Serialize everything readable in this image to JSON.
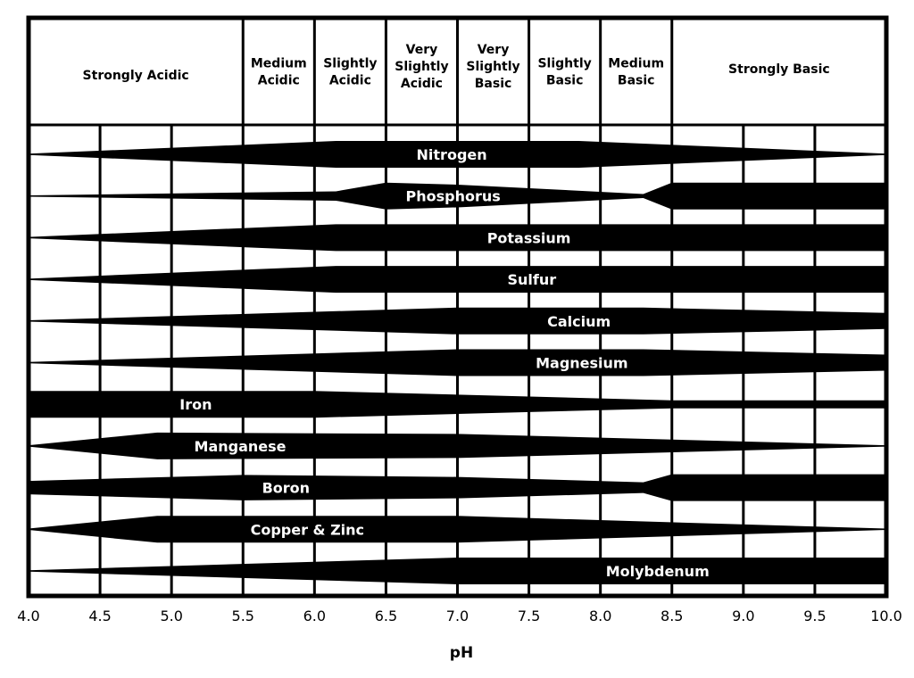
{
  "chart_data": {
    "type": "area",
    "xlabel": "pH",
    "xlim": [
      4.0,
      10.0
    ],
    "x_ticks": [
      "4.0",
      "4.5",
      "5.0",
      "5.5",
      "6.0",
      "6.5",
      "7.0",
      "7.5",
      "8.0",
      "8.5",
      "9.0",
      "9.5",
      "10.0"
    ],
    "grid": true,
    "header_categories": [
      {
        "label": "Strongly Acidic",
        "range": [
          4.0,
          5.5
        ]
      },
      {
        "label": "Medium Acidic",
        "range": [
          5.5,
          6.0
        ]
      },
      {
        "label": "Slightly Acidic",
        "range": [
          6.0,
          6.5
        ]
      },
      {
        "label": "Very Slightly Acidic",
        "range": [
          6.5,
          7.0
        ]
      },
      {
        "label": "Very Slightly Basic",
        "range": [
          7.0,
          7.5
        ]
      },
      {
        "label": "Slightly Basic",
        "range": [
          7.5,
          8.0
        ]
      },
      {
        "label": "Medium Basic",
        "range": [
          8.0,
          8.5
        ]
      },
      {
        "label": "Strongly Basic",
        "range": [
          8.5,
          10.0
        ]
      }
    ],
    "series_note_unit": "relative availability (0-1)",
    "series": [
      {
        "name": "Nitrogen",
        "points": [
          [
            4.0,
            0.05
          ],
          [
            6.15,
            1
          ],
          [
            7.85,
            1
          ],
          [
            10.0,
            0.05
          ]
        ]
      },
      {
        "name": "Phosphorus",
        "points": [
          [
            4.0,
            0.05
          ],
          [
            6.15,
            0.35
          ],
          [
            6.5,
            1
          ],
          [
            7.0,
            0.85
          ],
          [
            8.3,
            0.15
          ],
          [
            8.5,
            1
          ],
          [
            10.0,
            1
          ]
        ]
      },
      {
        "name": "Potassium",
        "points": [
          [
            4.0,
            0.05
          ],
          [
            6.15,
            1
          ],
          [
            10.0,
            1
          ]
        ]
      },
      {
        "name": "Sulfur",
        "points": [
          [
            4.0,
            0.05
          ],
          [
            6.15,
            1
          ],
          [
            10.0,
            1
          ]
        ]
      },
      {
        "name": "Calcium",
        "points": [
          [
            4.0,
            0.05
          ],
          [
            7.0,
            1
          ],
          [
            8.3,
            1
          ],
          [
            10.0,
            0.6
          ]
        ]
      },
      {
        "name": "Magnesium",
        "points": [
          [
            4.0,
            0.05
          ],
          [
            7.0,
            1
          ],
          [
            8.3,
            1
          ],
          [
            10.0,
            0.6
          ]
        ]
      },
      {
        "name": "Iron",
        "points": [
          [
            4.0,
            1
          ],
          [
            6.0,
            1
          ],
          [
            8.5,
            0.3
          ],
          [
            10.0,
            0.3
          ]
        ]
      },
      {
        "name": "Manganese",
        "points": [
          [
            4.0,
            0.05
          ],
          [
            4.9,
            1
          ],
          [
            7.0,
            0.9
          ],
          [
            10.0,
            0.05
          ]
        ]
      },
      {
        "name": "Boron",
        "points": [
          [
            4.0,
            0.5
          ],
          [
            5.5,
            0.95
          ],
          [
            7.0,
            0.8
          ],
          [
            8.3,
            0.4
          ],
          [
            8.5,
            1
          ],
          [
            10.0,
            1
          ]
        ]
      },
      {
        "name": "Copper & Zinc",
        "points": [
          [
            4.0,
            0.05
          ],
          [
            4.9,
            1
          ],
          [
            7.0,
            1
          ],
          [
            10.0,
            0.05
          ]
        ]
      },
      {
        "name": "Molybdenum",
        "points": [
          [
            4.0,
            0.05
          ],
          [
            7.0,
            1
          ],
          [
            10.0,
            1
          ]
        ]
      }
    ]
  }
}
